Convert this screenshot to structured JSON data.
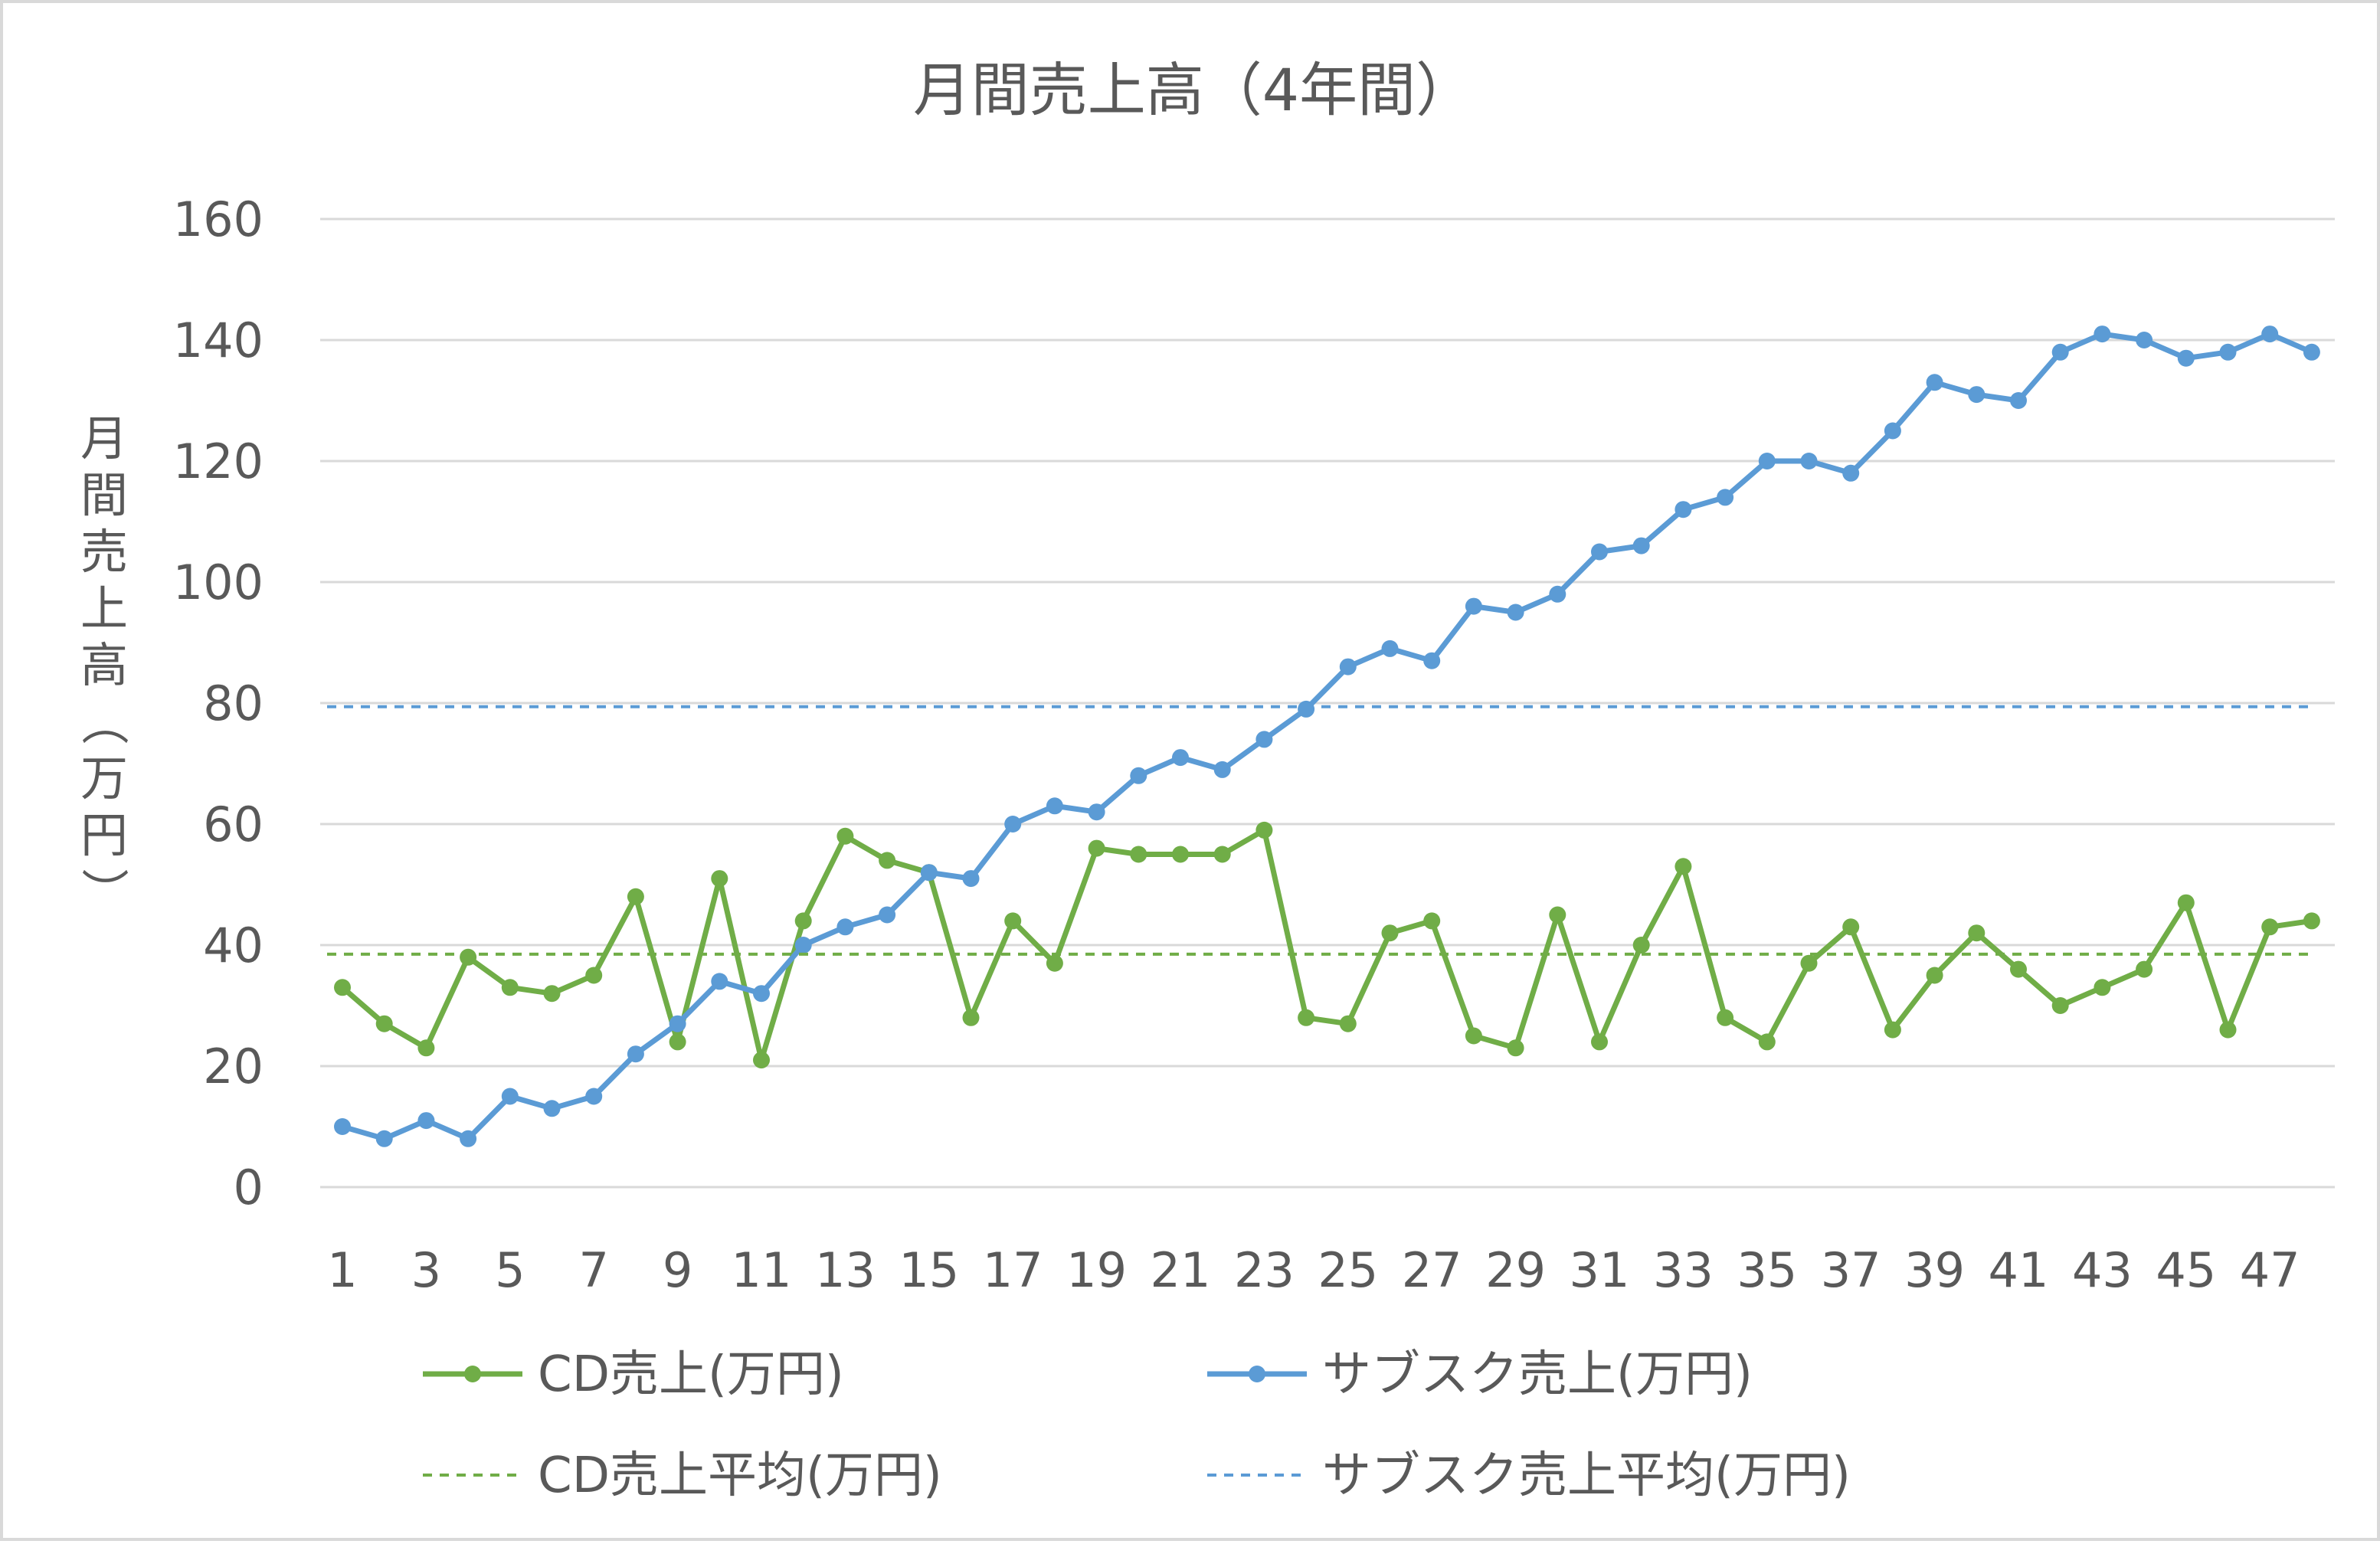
{
  "chart_data": {
    "type": "line",
    "title": "月間売上高（4年間）",
    "ylabel": "月間売上高（万円）",
    "xlabel": "",
    "ylim": [
      0,
      160
    ],
    "yticks": [
      "0",
      "20",
      "40",
      "60",
      "80",
      "100",
      "120",
      "140",
      "160"
    ],
    "xticks": [
      "1",
      "3",
      "5",
      "7",
      "9",
      "11",
      "13",
      "15",
      "17",
      "19",
      "21",
      "23",
      "25",
      "27",
      "29",
      "31",
      "33",
      "35",
      "37",
      "39",
      "41",
      "43",
      "45",
      "47"
    ],
    "x": [
      1,
      2,
      3,
      4,
      5,
      6,
      7,
      8,
      9,
      10,
      11,
      12,
      13,
      14,
      15,
      16,
      17,
      18,
      19,
      20,
      21,
      22,
      23,
      24,
      25,
      26,
      27,
      28,
      29,
      30,
      31,
      32,
      33,
      34,
      35,
      36,
      37,
      38,
      39,
      40,
      41,
      42,
      43,
      44,
      45,
      46,
      47,
      48
    ],
    "grid": true,
    "legend_position": "bottom",
    "series": [
      {
        "name": "CD売上(万円)",
        "color": "#70ad47",
        "style": "solid-marker",
        "values": [
          33,
          27,
          23,
          38,
          33,
          32,
          35,
          48,
          24,
          51,
          21,
          44,
          58,
          54,
          52,
          28,
          44,
          37,
          56,
          55,
          55,
          55,
          59,
          28,
          27,
          42,
          44,
          25,
          23,
          45,
          24,
          40,
          53,
          28,
          24,
          37,
          43,
          26,
          35,
          42,
          36,
          30,
          33,
          36,
          47,
          26,
          43,
          44
        ]
      },
      {
        "name": "サブスク売上(万円)",
        "color": "#5b9bd5",
        "style": "solid-marker",
        "values": [
          10,
          8,
          11,
          8,
          15,
          13,
          15,
          22,
          27,
          34,
          32,
          40,
          43,
          45,
          52,
          51,
          60,
          63,
          62,
          68,
          71,
          69,
          74,
          79,
          86,
          89,
          87,
          96,
          95,
          98,
          105,
          106,
          112,
          114,
          120,
          120,
          118,
          125,
          133,
          131,
          130,
          138,
          141,
          140,
          137,
          138,
          141,
          138
        ]
      },
      {
        "name": "CD売上平均(万円)",
        "color": "#70ad47",
        "style": "dashed",
        "constant": 38.5
      },
      {
        "name": "サブスク売上平均(万円)",
        "color": "#5b9bd5",
        "style": "dashed",
        "constant": 79.4
      }
    ]
  }
}
